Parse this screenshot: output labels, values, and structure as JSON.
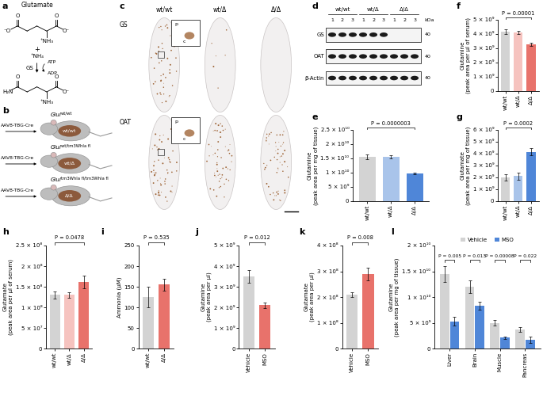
{
  "panel_a": {
    "letter": "a",
    "substrate": "Glutamate",
    "substrate_atoms": [
      "⁻O",
      "O",
      "⁺NH₃",
      "O",
      "O⁻"
    ],
    "plus": "+",
    "cosubstrate": "⁺NH₄",
    "enzyme": "GS",
    "cofactor_in": "ATP",
    "cofactor_out": "ADP",
    "product_atoms": [
      "H₂N",
      "O",
      "⁺NH₃",
      "O",
      "O⁻"
    ]
  },
  "panel_b": {
    "letter": "b",
    "vector": "AAV8-TBG-Cre",
    "gene": "Glul",
    "mice": [
      {
        "allele": "wt/wt",
        "liver": "wt/wt"
      },
      {
        "allele": "wt/tm3Whla fl",
        "liver": "wt/Δ"
      },
      {
        "allele": "tm3Whla fl/tm3Whla fl",
        "liver": "Δ/Δ"
      }
    ]
  },
  "panel_c": {
    "letter": "c",
    "columns": [
      "wt/wt",
      "wt/Δ",
      "Δ/Δ"
    ],
    "rows": [
      "GS",
      "OAT"
    ],
    "inset_labels": [
      "p",
      "c"
    ]
  },
  "panel_d": {
    "letter": "d",
    "groups": [
      "wt/wt",
      "wt/Δ",
      "Δ/Δ"
    ],
    "lanes": [
      "1",
      "2",
      "3"
    ],
    "unit": "kDa",
    "rows": [
      {
        "name": "GS",
        "kda": "40",
        "bands": [
          1,
          1,
          1,
          1,
          1,
          1,
          0,
          0,
          0
        ]
      },
      {
        "name": "OAT",
        "kda": "40",
        "bands": [
          1,
          1,
          1,
          1,
          1,
          1,
          1,
          1,
          1
        ]
      },
      {
        "name": "β-Actin",
        "kda": "40",
        "bands": [
          1,
          1,
          1,
          1,
          1,
          1,
          1,
          1,
          1
        ]
      }
    ]
  },
  "chart_data": [
    {
      "panel": "e",
      "type": "bar",
      "categories": [
        "wt/wt",
        "wt/Δ",
        "Δ/Δ"
      ],
      "values": [
        15500000000.0,
        15500000000.0,
        9700000000.0
      ],
      "errors": [
        800000000.0,
        600000000.0,
        400000000.0
      ],
      "colors": [
        "#d3d3d3",
        "#a9c4ea",
        "#4f86d8"
      ],
      "y_label": "Glutamine\n(peak area per mg of tissue)",
      "ylim": [
        0,
        25000000000.0
      ],
      "yticks": [
        0,
        {
          "value": 5000000000.0,
          "label": "5 × 10⁹"
        },
        {
          "value": 10000000000.0,
          "label": "1 × 10¹⁰"
        },
        {
          "value": 15000000000.0,
          "label": "1.5 × 10¹⁰"
        },
        {
          "value": 20000000000.0,
          "label": "2 × 10¹⁰"
        },
        {
          "value": 25000000000.0,
          "label": "2.5 × 10¹⁰"
        }
      ],
      "comparisons": [
        {
          "pair": [
            0,
            2
          ],
          "label": "P = 0.0000003"
        }
      ]
    },
    {
      "panel": "f",
      "type": "bar",
      "categories": [
        "wt/wt",
        "wt/Δ",
        "Δ/Δ"
      ],
      "values": [
        4150000000.0,
        4100000000.0,
        3250000000.0
      ],
      "errors": [
        150000000.0,
        120000000.0,
        120000000.0
      ],
      "colors": [
        "#d3d3d3",
        "#f6c3bf",
        "#e8726b"
      ],
      "y_label": "Glutamine\n(peak area per μl of serum)",
      "ylim": [
        0,
        5000000000.0
      ],
      "yticks": [
        0,
        {
          "value": 1000000000.0,
          "label": "1 × 10⁹"
        },
        {
          "value": 2000000000.0,
          "label": "2 × 10⁹"
        },
        {
          "value": 3000000000.0,
          "label": "3 × 10⁹"
        },
        {
          "value": 4000000000.0,
          "label": "4 × 10⁹"
        },
        {
          "value": 5000000000.0,
          "label": "5 × 10⁹"
        }
      ],
      "comparisons": [
        {
          "pair": [
            0,
            2
          ],
          "label": "P = 0.00001"
        }
      ]
    },
    {
      "panel": "g",
      "type": "bar",
      "categories": [
        "wt/wt",
        "wt/Δ",
        "Δ/Δ"
      ],
      "values": [
        2000000000.0,
        2100000000.0,
        4150000000.0
      ],
      "errors": [
        250000000.0,
        300000000.0,
        300000000.0
      ],
      "colors": [
        "#d3d3d3",
        "#a9c4ea",
        "#4f86d8"
      ],
      "y_label": "Glutamate\n(peak area per mg of tissue)",
      "ylim": [
        0,
        6000000000.0
      ],
      "yticks": [
        0,
        {
          "value": 1000000000.0,
          "label": "1 × 10⁹"
        },
        {
          "value": 2000000000.0,
          "label": "2 × 10⁹"
        },
        {
          "value": 3000000000.0,
          "label": "3 × 10⁹"
        },
        {
          "value": 4000000000.0,
          "label": "4 × 10⁹"
        },
        {
          "value": 5000000000.0,
          "label": "5 × 10⁹"
        },
        {
          "value": 6000000000.0,
          "label": "6 × 10⁹"
        }
      ],
      "comparisons": [
        {
          "pair": [
            0,
            2
          ],
          "label": "P = 0.0002"
        }
      ]
    },
    {
      "panel": "h",
      "type": "bar",
      "categories": [
        "wt/wt",
        "wt/Δ",
        "Δ/Δ"
      ],
      "values": [
        130000000.0,
        130000000.0,
        162000000.0
      ],
      "errors": [
        8000000.0,
        7000000.0,
        15000000.0
      ],
      "colors": [
        "#d3d3d3",
        "#f6c3bf",
        "#e8726b"
      ],
      "y_label": "Glutamate\n(peak area per μl of serum)",
      "ylim": [
        0,
        250000000.0
      ],
      "yticks": [
        0,
        {
          "value": 50000000.0,
          "label": "5 × 10⁷"
        },
        {
          "value": 100000000.0,
          "label": "1 × 10⁸"
        },
        {
          "value": 150000000.0,
          "label": "1.5 × 10⁸"
        },
        {
          "value": 200000000.0,
          "label": "2 × 10⁸"
        },
        {
          "value": 250000000.0,
          "label": "2.5 × 10⁸"
        }
      ],
      "comparisons": [
        {
          "pair": [
            0,
            2
          ],
          "label": "P = 0.0478"
        }
      ]
    },
    {
      "panel": "i",
      "type": "bar",
      "categories": [
        "wt/wt",
        "Δ/Δ"
      ],
      "values": [
        125,
        155
      ],
      "errors": [
        25,
        15
      ],
      "colors": [
        "#d3d3d3",
        "#e8726b"
      ],
      "y_label": "Ammonia (μM)",
      "ylim": [
        0,
        250
      ],
      "yticks": [
        0,
        50,
        100,
        150,
        200,
        250
      ],
      "comparisons": [
        {
          "pair": [
            0,
            1
          ],
          "label": "P = 0.535"
        }
      ]
    },
    {
      "panel": "j",
      "type": "bar",
      "categories": [
        "Vehicle",
        "MSO"
      ],
      "values": [
        3500000000.0,
        2100000000.0
      ],
      "errors": [
        300000000.0,
        150000000.0
      ],
      "colors": [
        "#d3d3d3",
        "#e8726b"
      ],
      "y_label": "Glutamine\n(peak area per μl)",
      "ylim": [
        0,
        5000000000.0
      ],
      "yticks": [
        0,
        {
          "value": 1000000000.0,
          "label": "1 × 10⁹"
        },
        {
          "value": 2000000000.0,
          "label": "2 × 10⁹"
        },
        {
          "value": 3000000000.0,
          "label": "3 × 10⁹"
        },
        {
          "value": 4000000000.0,
          "label": "4 × 10⁹"
        },
        {
          "value": 5000000000.0,
          "label": "5 × 10⁹"
        }
      ],
      "comparisons": [
        {
          "pair": [
            0,
            1
          ],
          "label": "P = 0.012"
        }
      ]
    },
    {
      "panel": "k",
      "type": "bar",
      "categories": [
        "Vehicle",
        "MSO"
      ],
      "values": [
        210000000.0,
        290000000.0
      ],
      "errors": [
        10000000.0,
        25000000.0
      ],
      "colors": [
        "#d3d3d3",
        "#e8726b"
      ],
      "y_label": "Glutamate\n(peak area per μl)",
      "ylim": [
        0,
        400000000.0
      ],
      "yticks": [
        0,
        {
          "value": 100000000.0,
          "label": "1 × 10⁸"
        },
        {
          "value": 200000000.0,
          "label": "2 × 10⁸"
        },
        {
          "value": 300000000.0,
          "label": "3 × 10⁸"
        },
        {
          "value": 400000000.0,
          "label": "4 × 10⁸"
        }
      ],
      "comparisons": [
        {
          "pair": [
            0,
            1
          ],
          "label": "P = 0.008"
        }
      ]
    },
    {
      "panel": "l",
      "type": "bar",
      "categories": [
        "Liver",
        "Brain",
        "Muscle",
        "Pancreas"
      ],
      "series": [
        {
          "name": "Vehicle",
          "color": "#d3d3d3",
          "values": [
            14500000000.0,
            12000000000.0,
            5000000000.0,
            3700000000.0
          ],
          "errors": [
            1500000000.0,
            1200000000.0,
            500000000.0,
            500000000.0
          ]
        },
        {
          "name": "MSO",
          "color": "#4f86d8",
          "values": [
            5300000000.0,
            8300000000.0,
            2100000000.0,
            1700000000.0
          ],
          "errors": [
            800000000.0,
            800000000.0,
            300000000.0,
            600000000.0
          ]
        }
      ],
      "y_label": "Glutamine\n(peak area per mg of tissue)",
      "ylim": [
        0,
        20000000000.0
      ],
      "yticks": [
        0,
        {
          "value": 5000000000.0,
          "label": "5 × 10⁹"
        },
        {
          "value": 10000000000.0,
          "label": "1 × 10¹⁰"
        },
        {
          "value": 15000000000.0,
          "label": "1.5 × 10¹⁰"
        },
        {
          "value": 20000000000.0,
          "label": "2 × 10¹⁰"
        }
      ],
      "legend": "top",
      "comparisons": [
        {
          "category": 0,
          "label": "P = 0.005"
        },
        {
          "category": 1,
          "label": "P = 0.013"
        },
        {
          "category": 2,
          "label": "P = 0.00008"
        },
        {
          "category": 3,
          "label": "P = 0.022"
        }
      ]
    }
  ]
}
